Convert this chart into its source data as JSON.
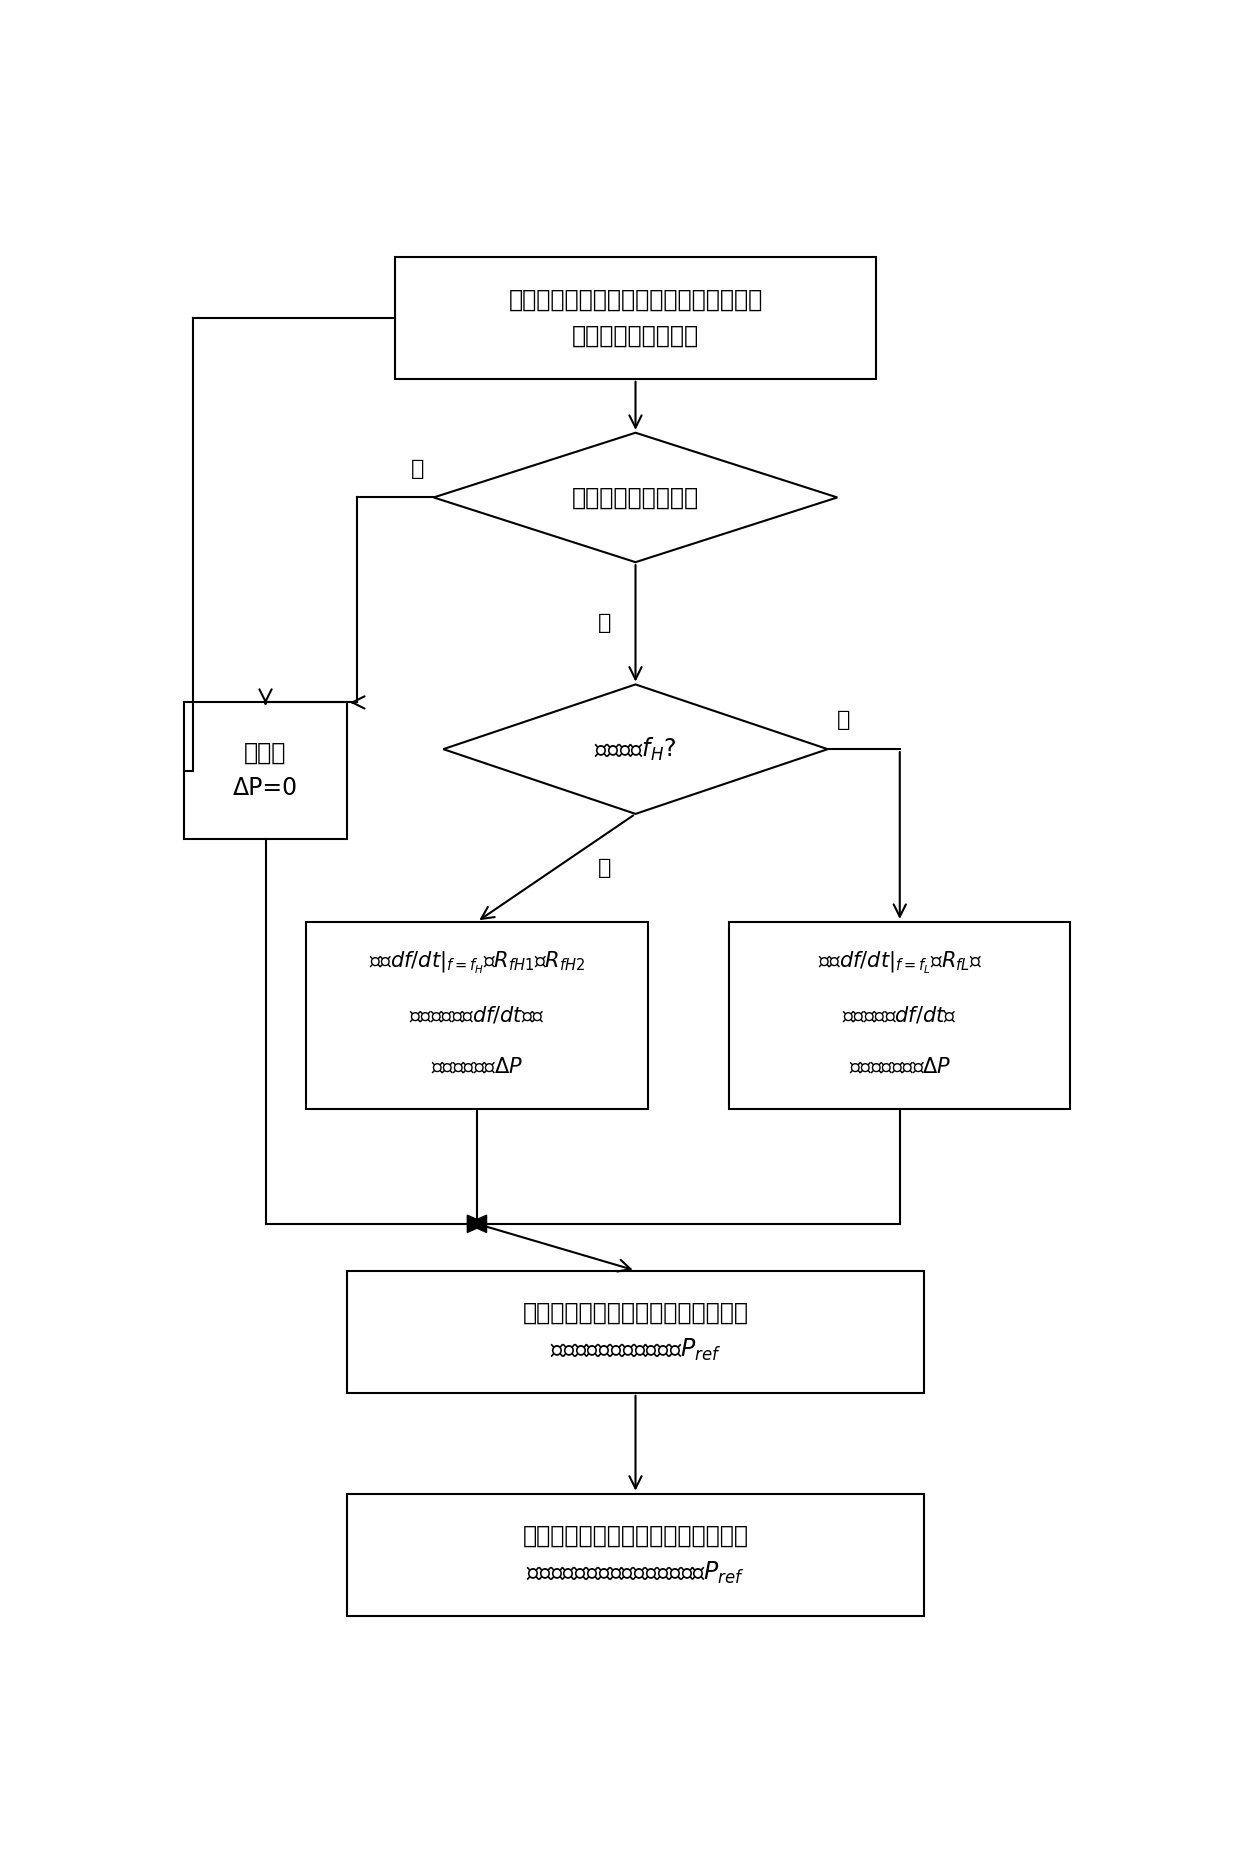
{
  "bg_color": "#ffffff",
  "box_color": "#ffffff",
  "box_edge": "#000000",
  "text_color": "#000000",
  "arrow_color": "#000000",
  "lw": 1.5,
  "fs": 17,
  "fs_small": 15,
  "top_text": "测量光伏电站并网点频率并计算经过低通\n滤波后的频率变化率",
  "d1_text": "频率是否超出死区？",
  "az_text": "调节量\nΔP=0",
  "d2_text": "频率高于$f_H$?",
  "bh_line1": "比较$df/dt|_{f=f_H}$与$R_{fH1}$、$R_{fH2}$",
  "bh_line2": "的大小并根据$df/dt$的正",
  "bh_line3": "负计算调节量$\\Delta P$",
  "bl_line1": "比较$df/dt|_{f=f_L}$与$R_{fL}$的",
  "bl_line2": "大小并根据$df/dt$的",
  "bl_line3": "正负计算调节量$\\Delta P$",
  "bc_text": "修正光伏电站有功控制指令得到光伏\n电站最终有功功率参考值$P_{ref}$",
  "ba_text": "调节光伏电站内的光伏逆变器有功控\n制指令，将并网点有功功率控制到$P_{ref}$",
  "label_yes": "是",
  "label_no": "否"
}
